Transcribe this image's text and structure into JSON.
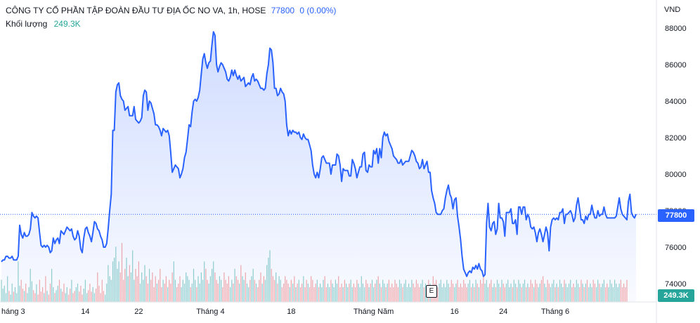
{
  "legend": {
    "symbol": "CÔNG TY CỔ PHẦN TẬP ĐOÀN ĐẦU TƯ ĐỊA ỐC NO VA, 1h, HOSE",
    "last": "77800",
    "change": "0 (0.00%)",
    "volume_label": "Khối lượng",
    "volume_value": "249.3K"
  },
  "currency": "VND",
  "price_badge": "77800",
  "volume_badge": "249.3K",
  "event_marker": "E",
  "colors": {
    "line": "#2962ff",
    "vol_up": "#26a69a",
    "vol_down": "#ef5350",
    "badge": "#2962ff"
  },
  "chart_data": {
    "type": "area",
    "y_ticks": [
      "88000",
      "86000",
      "84000",
      "82000",
      "80000",
      "78000",
      "76000",
      "74000"
    ],
    "ylim": [
      73000,
      88500
    ],
    "x_ticks": [
      {
        "label": "háng 3",
        "index": 0
      },
      {
        "label": "14",
        "index": 55
      },
      {
        "label": "22",
        "index": 90
      },
      {
        "label": "Tháng 4",
        "index": 137
      },
      {
        "label": "18",
        "index": 190
      },
      {
        "label": "Tháng Năm",
        "index": 244
      },
      {
        "label": "16",
        "index": 297
      },
      {
        "label": "24",
        "index": 329
      },
      {
        "label": "Tháng 6",
        "index": 363
      }
    ],
    "last_price_line": 77800,
    "prices": [
      75200,
      75300,
      75300,
      75500,
      75500,
      75400,
      75400,
      75500,
      75300,
      75300,
      75300,
      75500,
      77200,
      76700,
      76500,
      76800,
      76600,
      76600,
      76700,
      77000,
      77900,
      77700,
      77600,
      77700,
      77600,
      76800,
      76100,
      76000,
      76100,
      76000,
      76100,
      76000,
      75700,
      75800,
      76500,
      76200,
      76400,
      76500,
      76200,
      76900,
      76800,
      76700,
      76900,
      77100,
      77000,
      76900,
      77000,
      76600,
      76400,
      76500,
      76900,
      76600,
      75900,
      75700,
      76500,
      77000,
      77100,
      76800,
      76600,
      76300,
      76800,
      77400,
      77300,
      77000,
      76900,
      76600,
      76400,
      76000,
      76000,
      76200,
      77000,
      78000,
      78900,
      82400,
      82400,
      84500,
      84900,
      85000,
      84300,
      84100,
      84000,
      83500,
      83600,
      83700,
      83200,
      83200,
      83200,
      83700,
      83000,
      82900,
      82800,
      82900,
      83100,
      84300,
      84600,
      84500,
      83500,
      84000,
      83900,
      83600,
      83300,
      82700,
      82700,
      82600,
      82400,
      82100,
      82500,
      82400,
      82300,
      82400,
      82100,
      81200,
      80100,
      80300,
      80500,
      80400,
      80300,
      79800,
      80000,
      80300,
      80900,
      81200,
      81900,
      82700,
      82600,
      83400,
      84000,
      84100,
      84000,
      84200,
      84600,
      85500,
      86300,
      86600,
      86100,
      85800,
      86100,
      86200,
      87100,
      87800,
      87600,
      86000,
      85600,
      85900,
      86100,
      86000,
      85800,
      85600,
      85200,
      85100,
      85300,
      85700,
      85400,
      85700,
      85400,
      85200,
      85400,
      85100,
      85200,
      85300,
      84800,
      84900,
      85000,
      84900,
      85300,
      85500,
      85100,
      85200,
      85100,
      84900,
      84700,
      84700,
      84600,
      84700,
      85500,
      86000,
      86900,
      86800,
      86100,
      84700,
      84700,
      84300,
      84400,
      84700,
      84500,
      84400,
      84000,
      82700,
      82100,
      82400,
      82200,
      82400,
      82300,
      82300,
      82200,
      82300,
      82000,
      81900,
      82200,
      82000,
      81900,
      81900,
      81600,
      81300,
      80500,
      80000,
      79800,
      80100,
      79800,
      80300,
      80900,
      81000,
      80800,
      80600,
      80600,
      80600,
      80000,
      80500,
      80500,
      80500,
      81100,
      81000,
      80500,
      79600,
      80300,
      80200,
      80200,
      80200,
      79900,
      79900,
      80800,
      80600,
      80300,
      79800,
      80100,
      80400,
      80400,
      81100,
      81200,
      80200,
      80100,
      80500,
      80400,
      80400,
      81300,
      81100,
      81400,
      80600,
      81400,
      80900,
      82000,
      82300,
      82100,
      82200,
      81800,
      81600,
      81400,
      81000,
      80900,
      80800,
      80600,
      80600,
      80800,
      80500,
      80600,
      80700,
      80700,
      80700,
      81000,
      81300,
      81200,
      81000,
      80700,
      80600,
      80300,
      80400,
      80800,
      80300,
      80500,
      80700,
      80100,
      80100,
      79100,
      78700,
      78400,
      77900,
      77800,
      77800,
      77800,
      78000,
      78100,
      78700,
      79100,
      79400,
      78900,
      78700,
      78100,
      78600,
      78700,
      77700,
      77100,
      76400,
      75500,
      74800,
      74600,
      74400,
      74600,
      74700,
      74600,
      74900,
      74800,
      75000,
      74800,
      75100,
      74800,
      74700,
      74400,
      74500,
      77300,
      78400,
      77100,
      76900,
      77300,
      77400,
      76700,
      77000,
      78400,
      77600,
      77600,
      77400,
      76600,
      77900,
      77900,
      77900,
      78100,
      77300,
      77300,
      77500,
      76700,
      78200,
      78200,
      77800,
      78200,
      78200,
      77500,
      77800,
      77600,
      77100,
      77000,
      77100,
      76800,
      76300,
      76800,
      77000,
      76700,
      76300,
      76700,
      77100,
      76800,
      75800,
      77100,
      77500,
      77600,
      77500,
      77600,
      77500,
      77900,
      77900,
      78100,
      77300,
      77800,
      77800,
      77900,
      78000,
      77800,
      77400,
      77600,
      78300,
      78700,
      78100,
      77500,
      77500,
      77300,
      77700,
      77500,
      77800,
      77800,
      78300,
      77900,
      77600,
      77600,
      78000,
      77700,
      77800,
      77800,
      78200,
      77800,
      77600,
      77600,
      77600,
      77600,
      77600,
      77600,
      77700,
      78200,
      78700,
      78100,
      77800,
      77700,
      77600,
      77500,
      78500,
      78900,
      77900,
      77700,
      77600,
      77800
    ],
    "volumes": [
      0.3,
      0.18,
      0.22,
      0.12,
      0.35,
      0.15,
      0.1,
      0.25,
      0.14,
      0.2,
      0.12,
      0.55,
      0.22,
      0.3,
      0.18,
      0.15,
      0.25,
      0.12,
      0.2,
      0.45,
      0.28,
      0.16,
      0.12,
      0.24,
      0.1,
      0.3,
      0.14,
      0.2,
      0.12,
      0.35,
      0.15,
      0.1,
      0.25,
      0.45,
      0.2,
      0.12,
      0.16,
      0.22,
      0.3,
      0.18,
      0.14,
      0.25,
      0.12,
      0.2,
      0.1,
      0.18,
      0.3,
      0.12,
      0.15,
      0.2,
      0.25,
      0.14,
      0.22,
      0.1,
      0.18,
      0.3,
      0.12,
      0.16,
      0.25,
      0.14,
      0.2,
      0.12,
      0.18,
      0.4,
      0.22,
      0.12,
      0.3,
      0.15,
      0.1,
      0.25,
      0.5,
      0.35,
      0.3,
      0.55,
      0.6,
      0.75,
      0.45,
      0.55,
      0.4,
      0.8,
      0.3,
      0.45,
      0.6,
      0.35,
      0.5,
      0.4,
      0.7,
      0.3,
      0.45,
      0.35,
      0.55,
      0.25,
      0.4,
      0.3,
      0.5,
      0.35,
      0.25,
      0.45,
      0.3,
      0.4,
      0.2,
      0.35,
      0.25,
      0.3,
      0.45,
      0.2,
      0.3,
      0.25,
      0.35,
      0.2,
      0.3,
      0.25,
      0.4,
      0.55,
      0.3,
      0.2,
      0.25,
      0.35,
      0.2,
      0.3,
      0.25,
      0.4,
      0.35,
      0.3,
      0.2,
      0.25,
      0.45,
      0.3,
      0.2,
      0.35,
      0.25,
      0.4,
      0.3,
      0.55,
      0.45,
      0.3,
      0.25,
      0.35,
      0.45,
      0.55,
      0.4,
      0.3,
      0.25,
      0.35,
      0.3,
      0.2,
      0.4,
      0.3,
      0.25,
      0.35,
      0.2,
      0.3,
      0.25,
      0.45,
      0.35,
      0.3,
      0.25,
      0.5,
      0.35,
      0.3,
      0.4,
      0.25,
      0.2,
      0.3,
      0.35,
      0.45,
      0.3,
      0.25,
      0.2,
      0.3,
      0.4,
      0.25,
      0.35,
      0.3,
      0.5,
      0.6,
      0.7,
      0.45,
      0.35,
      0.3,
      0.4,
      0.25,
      0.35,
      0.3,
      0.2,
      0.25,
      0.35,
      0.3,
      0.25,
      0.2,
      0.3,
      0.25,
      0.35,
      0.2,
      0.25,
      0.3,
      0.2,
      0.25,
      0.35,
      0.2,
      0.3,
      0.25,
      0.2,
      0.35,
      0.3,
      0.2,
      0.25,
      0.3,
      0.2,
      0.25,
      0.2,
      0.3,
      0.35,
      0.2,
      0.25,
      0.2,
      0.3,
      0.25,
      0.2,
      0.3,
      0.25,
      0.35,
      0.2,
      0.25,
      0.2,
      0.3,
      0.25,
      0.2,
      0.25,
      0.3,
      0.2,
      0.25,
      0.2,
      0.3,
      0.25,
      0.2,
      0.35,
      0.25,
      0.2,
      0.3,
      0.25,
      0.2,
      0.25,
      0.3,
      0.2,
      0.25,
      0.3,
      0.35,
      0.25,
      0.2,
      0.3,
      0.25,
      0.2,
      0.25,
      0.3,
      0.2,
      0.25,
      0.2,
      0.3,
      0.25,
      0.2,
      0.3,
      0.25,
      0.2,
      0.25,
      0.3,
      0.2,
      0.25,
      0.2,
      0.3,
      0.25,
      0.2,
      0.3,
      0.25,
      0.2,
      0.25,
      0.3,
      0.2,
      0.25,
      0.2,
      0.3,
      0.25,
      0.2,
      0.35,
      0.25,
      0.3,
      0.2,
      0.25,
      0.3,
      0.2,
      0.25,
      0.2,
      0.3,
      0.25,
      0.2,
      0.3,
      0.25,
      0.2,
      0.25,
      0.3,
      0.2,
      0.25,
      0.2,
      0.3,
      0.25,
      0.2,
      0.25,
      0.3,
      0.2,
      0.25,
      0.2,
      0.3,
      0.25,
      0.2,
      0.3,
      0.25,
      0.35,
      0.25,
      0.3,
      0.2,
      0.25,
      0.3,
      0.2,
      0.25,
      0.2,
      0.3,
      0.25,
      0.2,
      0.3,
      0.25,
      0.2,
      0.25,
      0.3,
      0.2,
      0.25,
      0.2,
      0.3,
      0.25,
      0.2,
      0.3,
      0.25,
      0.2,
      0.25,
      0.3,
      0.2,
      0.25,
      0.2,
      0.3,
      0.25,
      0.2,
      0.3,
      0.25,
      0.2,
      0.25,
      0.3,
      0.35,
      0.25,
      0.2,
      0.3,
      0.25,
      0.2,
      0.25,
      0.3,
      0.2,
      0.25,
      0.2,
      0.3,
      0.25,
      0.2,
      0.3,
      0.25,
      0.2,
      0.25,
      0.3,
      0.2,
      0.25,
      0.2,
      0.3,
      0.25,
      0.2,
      0.3,
      0.25,
      0.2,
      0.25,
      0.3,
      0.2,
      0.25,
      0.2,
      0.3,
      0.25,
      0.2,
      0.3,
      0.25,
      0.2,
      0.25,
      0.3,
      0.2,
      0.25,
      0.2,
      0.3,
      0.25,
      0.2,
      0.3,
      0.25,
      0.2,
      0.25,
      0.3,
      0.2,
      0.25,
      0.2,
      0.3
    ]
  }
}
